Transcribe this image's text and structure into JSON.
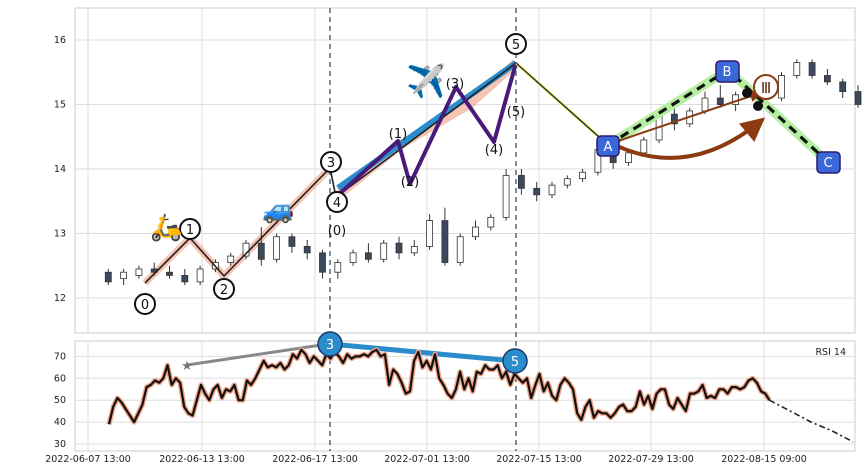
{
  "chart_data": {
    "type": "candlestick",
    "x_ticks": [
      "2022-06-07 13:00",
      "2022-06-13 13:00",
      "2022-06-17 13:00",
      "2022-07-01 13:00",
      "2022-07-15 13:00",
      "2022-07-29 13:00",
      "2022-08-15 09:00"
    ],
    "price_panel": {
      "ylim": [
        11.5,
        16.5
      ],
      "y_ticks": [
        12,
        13,
        14,
        15,
        16
      ],
      "grid": true,
      "candles": [
        {
          "i": 1,
          "o": 12.4,
          "h": 12.45,
          "l": 12.2,
          "c": 12.25
        },
        {
          "i": 2,
          "o": 12.3,
          "h": 12.45,
          "l": 12.2,
          "c": 12.4
        },
        {
          "i": 3,
          "o": 12.35,
          "h": 12.5,
          "l": 12.3,
          "c": 12.45
        },
        {
          "i": 4,
          "o": 12.45,
          "h": 12.55,
          "l": 12.35,
          "c": 12.4
        },
        {
          "i": 5,
          "o": 12.4,
          "h": 12.5,
          "l": 12.3,
          "c": 12.35
        },
        {
          "i": 6,
          "o": 12.35,
          "h": 12.45,
          "l": 12.2,
          "c": 12.25
        },
        {
          "i": 7,
          "o": 12.25,
          "h": 12.5,
          "l": 12.2,
          "c": 12.45
        },
        {
          "i": 8,
          "o": 12.45,
          "h": 12.6,
          "l": 12.4,
          "c": 12.55
        },
        {
          "i": 9,
          "o": 12.55,
          "h": 12.7,
          "l": 12.5,
          "c": 12.65
        },
        {
          "i": 10,
          "o": 12.65,
          "h": 12.9,
          "l": 12.6,
          "c": 12.85
        },
        {
          "i": 11,
          "o": 12.85,
          "h": 13.1,
          "l": 12.5,
          "c": 12.6
        },
        {
          "i": 12,
          "o": 12.6,
          "h": 13.0,
          "l": 12.55,
          "c": 12.95
        },
        {
          "i": 13,
          "o": 12.95,
          "h": 13.0,
          "l": 12.7,
          "c": 12.8
        },
        {
          "i": 14,
          "o": 12.8,
          "h": 12.9,
          "l": 12.6,
          "c": 12.7
        },
        {
          "i": 15,
          "o": 12.7,
          "h": 12.75,
          "l": 12.3,
          "c": 12.4
        },
        {
          "i": 16,
          "o": 12.4,
          "h": 12.6,
          "l": 12.3,
          "c": 12.55
        },
        {
          "i": 17,
          "o": 12.55,
          "h": 12.75,
          "l": 12.5,
          "c": 12.7
        },
        {
          "i": 18,
          "o": 12.7,
          "h": 12.85,
          "l": 12.55,
          "c": 12.6
        },
        {
          "i": 19,
          "o": 12.6,
          "h": 12.9,
          "l": 12.55,
          "c": 12.85
        },
        {
          "i": 20,
          "o": 12.85,
          "h": 12.95,
          "l": 12.6,
          "c": 12.7
        },
        {
          "i": 21,
          "o": 12.7,
          "h": 12.9,
          "l": 12.65,
          "c": 12.8
        },
        {
          "i": 22,
          "o": 12.8,
          "h": 13.3,
          "l": 12.75,
          "c": 13.2
        },
        {
          "i": 23,
          "o": 13.2,
          "h": 13.4,
          "l": 12.5,
          "c": 12.55
        },
        {
          "i": 24,
          "o": 12.55,
          "h": 13.0,
          "l": 12.5,
          "c": 12.95
        },
        {
          "i": 25,
          "o": 12.95,
          "h": 13.2,
          "l": 12.9,
          "c": 13.1
        },
        {
          "i": 26,
          "o": 13.1,
          "h": 13.3,
          "l": 13.05,
          "c": 13.25
        },
        {
          "i": 27,
          "o": 13.25,
          "h": 14.0,
          "l": 13.2,
          "c": 13.9
        },
        {
          "i": 28,
          "o": 13.9,
          "h": 14.0,
          "l": 13.6,
          "c": 13.7
        },
        {
          "i": 29,
          "o": 13.7,
          "h": 13.8,
          "l": 13.5,
          "c": 13.6
        },
        {
          "i": 30,
          "o": 13.6,
          "h": 13.8,
          "l": 13.55,
          "c": 13.75
        },
        {
          "i": 31,
          "o": 13.75,
          "h": 13.9,
          "l": 13.7,
          "c": 13.85
        },
        {
          "i": 32,
          "o": 13.85,
          "h": 14.0,
          "l": 13.8,
          "c": 13.95
        },
        {
          "i": 33,
          "o": 13.95,
          "h": 14.4,
          "l": 13.9,
          "c": 14.3
        },
        {
          "i": 34,
          "o": 14.3,
          "h": 14.4,
          "l": 14.0,
          "c": 14.1
        },
        {
          "i": 35,
          "o": 14.1,
          "h": 14.3,
          "l": 14.05,
          "c": 14.25
        },
        {
          "i": 36,
          "o": 14.25,
          "h": 14.5,
          "l": 14.2,
          "c": 14.45
        },
        {
          "i": 37,
          "o": 14.45,
          "h": 14.9,
          "l": 14.4,
          "c": 14.85
        },
        {
          "i": 38,
          "o": 14.85,
          "h": 15.1,
          "l": 14.6,
          "c": 14.7
        },
        {
          "i": 39,
          "o": 14.7,
          "h": 14.95,
          "l": 14.65,
          "c": 14.9
        },
        {
          "i": 40,
          "o": 14.9,
          "h": 15.2,
          "l": 14.85,
          "c": 15.1
        },
        {
          "i": 41,
          "o": 15.1,
          "h": 15.3,
          "l": 14.95,
          "c": 15.0
        },
        {
          "i": 42,
          "o": 15.0,
          "h": 15.2,
          "l": 14.9,
          "c": 15.15
        },
        {
          "i": 43,
          "o": 15.15,
          "h": 15.3,
          "l": 15.1,
          "c": 15.2
        },
        {
          "i": 44,
          "o": 15.2,
          "h": 15.45,
          "l": 15.0,
          "c": 15.1
        },
        {
          "i": 45,
          "o": 15.1,
          "h": 15.5,
          "l": 15.05,
          "c": 15.45
        },
        {
          "i": 46,
          "o": 15.45,
          "h": 15.7,
          "l": 15.4,
          "c": 15.65
        },
        {
          "i": 47,
          "o": 15.65,
          "h": 15.7,
          "l": 15.4,
          "c": 15.45
        },
        {
          "i": 48,
          "o": 15.45,
          "h": 15.55,
          "l": 15.3,
          "c": 15.35
        },
        {
          "i": 49,
          "o": 15.35,
          "h": 15.4,
          "l": 15.1,
          "c": 15.2
        },
        {
          "i": 50,
          "o": 15.2,
          "h": 15.3,
          "l": 14.95,
          "c": 15.0
        },
        {
          "i": 51,
          "o": 15.0,
          "h": 15.1,
          "l": 14.8,
          "c": 14.85
        },
        {
          "i": 52,
          "o": 14.85,
          "h": 14.95,
          "l": 14.5,
          "c": 14.6
        },
        {
          "i": 53,
          "o": 14.6,
          "h": 14.9,
          "l": 14.55,
          "c": 14.85
        },
        {
          "i": 54,
          "o": 14.85,
          "h": 14.9,
          "l": 14.4,
          "c": 14.5
        },
        {
          "i": 55,
          "o": 14.5,
          "h": 14.6,
          "l": 14.3,
          "c": 14.45
        },
        {
          "i": 56,
          "o": 14.45,
          "h": 14.7,
          "l": 14.4,
          "c": 14.65
        },
        {
          "i": 57,
          "o": 14.65,
          "h": 14.9,
          "l": 14.6,
          "c": 14.85
        },
        {
          "i": 58,
          "o": 14.85,
          "h": 15.0,
          "l": 14.8,
          "c": 14.95
        },
        {
          "i": 59,
          "o": 14.95,
          "h": 15.05,
          "l": 14.85,
          "c": 15.0
        },
        {
          "i": 60,
          "o": 15.0,
          "h": 15.1,
          "l": 14.9,
          "c": 14.95
        },
        {
          "i": 61,
          "o": 14.95,
          "h": 15.0,
          "l": 14.5,
          "c": 14.55
        },
        {
          "i": 62,
          "o": 14.55,
          "h": 14.7,
          "l": 14.4,
          "c": 14.6
        },
        {
          "i": 63,
          "o": 14.6,
          "h": 14.8,
          "l": 14.5,
          "c": 14.75
        },
        {
          "i": 64,
          "o": 14.75,
          "h": 15.0,
          "l": 14.7,
          "c": 14.95
        },
        {
          "i": 65,
          "o": 14.95,
          "h": 15.1,
          "l": 14.9,
          "c": 15.05
        },
        {
          "i": 66,
          "o": 15.05,
          "h": 15.1,
          "l": 14.95,
          "c": 15.0
        },
        {
          "i": 67,
          "o": 15.0,
          "h": 15.05,
          "l": 14.9,
          "c": 14.95
        },
        {
          "i": 68,
          "o": 14.95,
          "h": 15.1,
          "l": 14.9,
          "c": 15.05
        }
      ],
      "elliott_impulse_lines": [
        [
          1,
          12.2
        ],
        [
          5.5,
          12.95
        ],
        [
          8.5,
          12.3
        ],
        [
          15,
          13.95
        ],
        [
          17,
          13.45
        ],
        [
          23.5,
          14.35
        ],
        [
          31.5,
          15.65
        ]
      ],
      "labels": [
        {
          "text": "0",
          "x": 4.5,
          "y": 11.9,
          "circled": true
        },
        {
          "text": "1",
          "x": 6.5,
          "y": 13.05,
          "circled": true
        },
        {
          "text": "2",
          "x": 8.5,
          "y": 12.15,
          "circled": true
        },
        {
          "text": "3",
          "x": 15,
          "y": 14.1,
          "circled": true
        },
        {
          "text": "4",
          "x": 17,
          "y": 13.45,
          "circled": true
        },
        {
          "text": "5",
          "x": 31.5,
          "y": 15.9,
          "circled": true
        },
        {
          "text": "(0)",
          "x": 17,
          "y": 13.0
        },
        {
          "text": "(1)",
          "x": 20.5,
          "y": 14.5
        },
        {
          "text": "(2)",
          "x": 22.2,
          "y": 13.75
        },
        {
          "text": "(3)",
          "x": 25.5,
          "y": 15.15
        },
        {
          "text": "(4)",
          "x": 28.5,
          "y": 14.25
        },
        {
          "text": "(5)",
          "x": 31.5,
          "y": 14.85
        }
      ],
      "abc_labels": [
        "A",
        "B",
        "C"
      ],
      "roman_label": "Ⅲ"
    },
    "rsi_panel": {
      "label": "RSI 14",
      "ylim": [
        28,
        78
      ],
      "y_ticks": [
        30,
        40,
        50,
        60,
        70
      ],
      "values": [
        39,
        47,
        51,
        49,
        46,
        43,
        40,
        44,
        48,
        56,
        57,
        59,
        58,
        60,
        66,
        57,
        60,
        58,
        47,
        44,
        43,
        50,
        57,
        53,
        50,
        55,
        57,
        51,
        55,
        54,
        57,
        50,
        50,
        59,
        57,
        60,
        64,
        68,
        65,
        66,
        65,
        67,
        64,
        66,
        71,
        69,
        73,
        71,
        67,
        70,
        68,
        66,
        71,
        69,
        72,
        70,
        67,
        71,
        69,
        70,
        70,
        71,
        70,
        72,
        73,
        70,
        71,
        57,
        64,
        62,
        58,
        53,
        54,
        68,
        72,
        65,
        68,
        64,
        71,
        60,
        57,
        53,
        51,
        55,
        63,
        55,
        60,
        54,
        63,
        62,
        66,
        64,
        64,
        66,
        60,
        63,
        57,
        62,
        60,
        58,
        60,
        51,
        57,
        62,
        54,
        58,
        52,
        50,
        57,
        60,
        58,
        55,
        44,
        41,
        47,
        50,
        42,
        45,
        44,
        44,
        42,
        44,
        47,
        48,
        45,
        45,
        47,
        54,
        48,
        52,
        46,
        53,
        55,
        55,
        48,
        46,
        51,
        48,
        45,
        53,
        53,
        54,
        57,
        51,
        52,
        51,
        55,
        55,
        53,
        56,
        56,
        55,
        56,
        59,
        60,
        58,
        54,
        53,
        50
      ],
      "forecast": [
        [
          158,
          50
        ],
        [
          163,
          45
        ],
        [
          168,
          40
        ],
        [
          173,
          36
        ],
        [
          178,
          31
        ]
      ],
      "markers": [
        {
          "label": "3",
          "x": 72,
          "y": 75
        },
        {
          "label": "5",
          "x": 139,
          "y": 68
        }
      ],
      "star_point": [
        25,
        67
      ]
    }
  }
}
